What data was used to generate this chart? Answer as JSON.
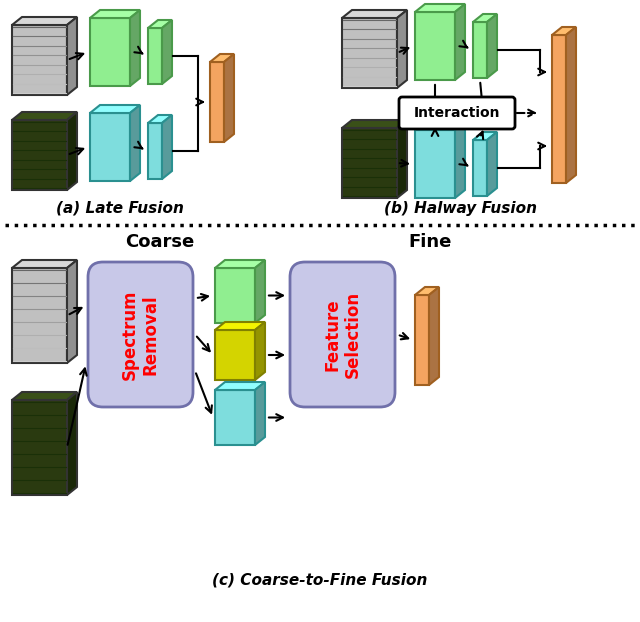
{
  "bg_color": "#ffffff",
  "green_face": "#90EE90",
  "green_edge": "#4a9a4a",
  "teal_face": "#7EDDDD",
  "teal_edge": "#2a9090",
  "orange_face": "#F4A460",
  "orange_edge": "#a06020",
  "yellow_face": "#D4D400",
  "yellow_edge": "#808000",
  "box_bg": "#C8C8E8",
  "box_edge": "#7070aa",
  "inter_bg": "#ffffff",
  "inter_edge": "#000000",
  "label_a": "(a) Late Fusion",
  "label_b": "(b) Halway Fusion",
  "label_c": "(c) Coarse-to-Fine Fusion",
  "coarse_label": "Coarse",
  "fine_label": "Fine",
  "spectrum_removal": "Spectrum\nRemoval",
  "feature_selection": "Feature\nSelection",
  "interaction_label": "Interaction"
}
